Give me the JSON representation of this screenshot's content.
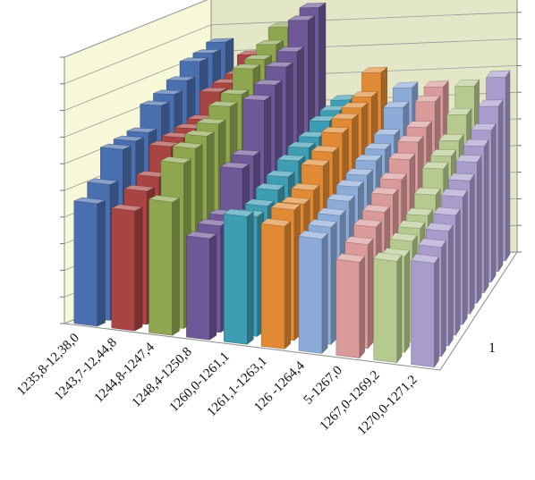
{
  "chart_data": {
    "type": "bar",
    "projection": "3d-column",
    "title": "",
    "xlabel": "",
    "ylabel": "",
    "ylim": [
      0,
      10
    ],
    "grid": true,
    "legend": "none",
    "categories": [
      "1235,8-12,38,0",
      "1243,7-12,44,8",
      "1244,8-1247,4",
      "1248,4-1250,8",
      "1260,0-1261,1",
      "1261,1-1263,1",
      "126 -1264,4",
      "5-1267,0",
      "1267,0-1269,2",
      "1270,0-1271,2"
    ],
    "depth_ticks": [
      "",
      "1"
    ],
    "colors": [
      "#4a6fae",
      "#a84442",
      "#8da64f",
      "#6e5898",
      "#3e9db3",
      "#e08a35",
      "#8cabd8",
      "#d99a99",
      "#b6c98f",
      "#a99ccc"
    ],
    "series_values": [
      [
        4.6,
        5.1,
        6.2,
        6.3,
        6.4,
        7.2,
        7.4,
        7.7,
        8.2,
        8.3,
        8.5
      ],
      [
        4.5,
        5.0,
        5.3,
        6.2,
        6.3,
        6.4,
        6.5,
        7.3,
        7.4,
        7.5,
        8.0
      ],
      [
        5.0,
        6.2,
        6.5,
        6.7,
        6.9,
        7.3,
        7.5,
        8.2,
        8.3,
        8.6,
        9.0
      ],
      [
        3.8,
        4.0,
        4.1,
        5.6,
        5.8,
        7.6,
        7.9,
        8.3,
        8.6,
        9.5,
        9.7
      ],
      [
        4.8,
        4.5,
        4.6,
        4.9,
        5.1,
        5.4,
        5.6,
        5.7,
        6.0,
        6.1,
        6.2
      ],
      [
        4.6,
        4.9,
        4.8,
        5.0,
        5.6,
        5.8,
        6.2,
        6.4,
        6.5,
        6.6,
        7.2
      ],
      [
        4.3,
        4.4,
        4.5,
        4.7,
        4.9,
        5.0,
        5.2,
        5.3,
        5.5,
        6.2,
        6.6
      ],
      [
        3.6,
        3.9,
        4.2,
        4.4,
        4.7,
        4.9,
        5.3,
        5.6,
        5.8,
        6.4,
        6.6
      ],
      [
        3.8,
        3.6,
        3.8,
        3.9,
        4.0,
        4.4,
        5.0,
        5.1,
        5.3,
        5.9,
        6.6
      ],
      [
        3.9,
        4.1,
        4.3,
        4.5,
        4.8,
        5.0,
        5.3,
        5.5,
        5.7,
        6.2,
        6.9
      ]
    ]
  }
}
